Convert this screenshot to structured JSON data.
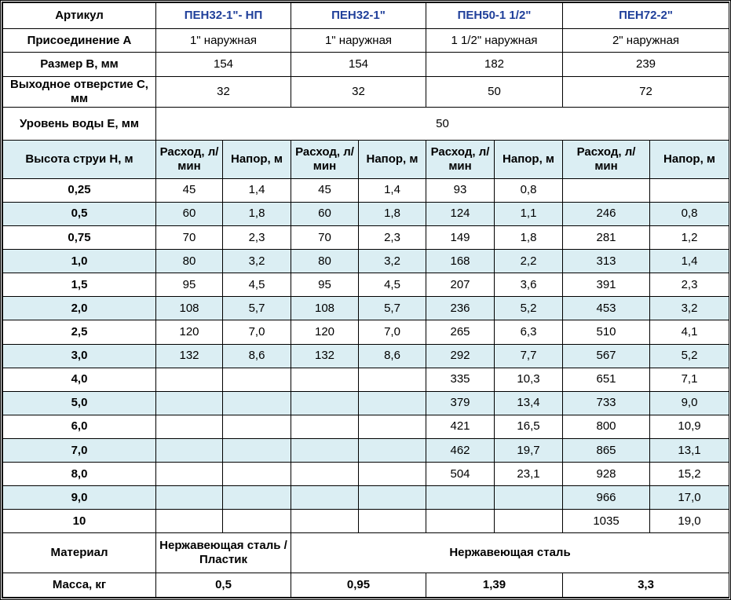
{
  "header": {
    "label": "Артикул",
    "models": [
      "ПЕН32-1\"- НП",
      "ПЕН32-1\"",
      "ПЕН50-1 1/2\"",
      "ПЕН72-2\""
    ]
  },
  "specs": [
    {
      "label": "Присоединение А",
      "values": [
        "1\" наружная",
        "1\" наружная",
        "1 1/2\" наружная",
        "2\" наружная"
      ]
    },
    {
      "label": "Размер В, мм",
      "values": [
        "154",
        "154",
        "182",
        "239"
      ]
    },
    {
      "label": "Выходное отверстие С, мм",
      "values": [
        "32",
        "32",
        "50",
        "72"
      ]
    }
  ],
  "water_level": {
    "label": "Уровень воды Е, мм",
    "value": "50"
  },
  "subheader": {
    "label": "Высота струи Н, м",
    "flow": "Расход, л/мин",
    "head": "Напор, м"
  },
  "rows": [
    {
      "h": "0,25",
      "v": [
        "45",
        "1,4",
        "45",
        "1,4",
        "93",
        "0,8",
        "",
        ""
      ]
    },
    {
      "h": "0,5",
      "v": [
        "60",
        "1,8",
        "60",
        "1,8",
        "124",
        "1,1",
        "246",
        "0,8"
      ]
    },
    {
      "h": "0,75",
      "v": [
        "70",
        "2,3",
        "70",
        "2,3",
        "149",
        "1,8",
        "281",
        "1,2"
      ]
    },
    {
      "h": "1,0",
      "v": [
        "80",
        "3,2",
        "80",
        "3,2",
        "168",
        "2,2",
        "313",
        "1,4"
      ]
    },
    {
      "h": "1,5",
      "v": [
        "95",
        "4,5",
        "95",
        "4,5",
        "207",
        "3,6",
        "391",
        "2,3"
      ]
    },
    {
      "h": "2,0",
      "v": [
        "108",
        "5,7",
        "108",
        "5,7",
        "236",
        "5,2",
        "453",
        "3,2"
      ]
    },
    {
      "h": "2,5",
      "v": [
        "120",
        "7,0",
        "120",
        "7,0",
        "265",
        "6,3",
        "510",
        "4,1"
      ]
    },
    {
      "h": "3,0",
      "v": [
        "132",
        "8,6",
        "132",
        "8,6",
        "292",
        "7,7",
        "567",
        "5,2"
      ]
    },
    {
      "h": "4,0",
      "v": [
        "",
        "",
        "",
        "",
        "335",
        "10,3",
        "651",
        "7,1"
      ]
    },
    {
      "h": "5,0",
      "v": [
        "",
        "",
        "",
        "",
        "379",
        "13,4",
        "733",
        "9,0"
      ]
    },
    {
      "h": "6,0",
      "v": [
        "",
        "",
        "",
        "",
        "421",
        "16,5",
        "800",
        "10,9"
      ]
    },
    {
      "h": "7,0",
      "v": [
        "",
        "",
        "",
        "",
        "462",
        "19,7",
        "865",
        "13,1"
      ]
    },
    {
      "h": "8,0",
      "v": [
        "",
        "",
        "",
        "",
        "504",
        "23,1",
        "928",
        "15,2"
      ]
    },
    {
      "h": "9,0",
      "v": [
        "",
        "",
        "",
        "",
        "",
        "",
        "966",
        "17,0"
      ]
    },
    {
      "h": "10",
      "v": [
        "",
        "",
        "",
        "",
        "",
        "",
        "1035",
        "19,0"
      ]
    }
  ],
  "material": {
    "label": "Материал",
    "first": "Нержавеющая сталь / Пластик",
    "rest": "Нержавеющая сталь"
  },
  "mass": {
    "label": "Масса, кг",
    "values": [
      "0,5",
      "0,95",
      "1,39",
      "3,3"
    ]
  },
  "colors": {
    "model_text": "#1f3f9a",
    "shade": "#dbeef3"
  }
}
